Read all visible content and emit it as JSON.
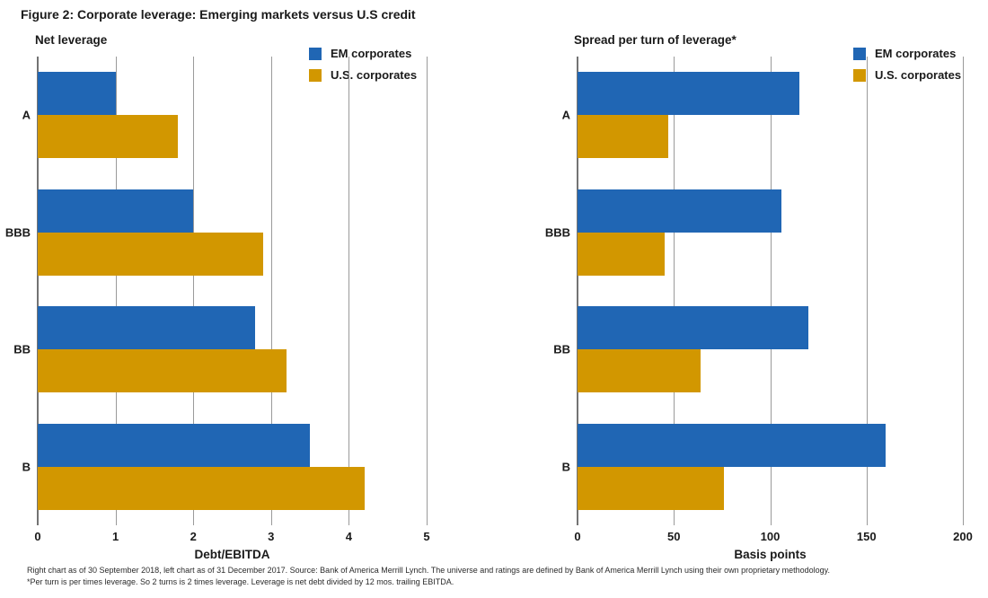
{
  "figure_title": "Figure 2: Corporate leverage: Emerging markets versus U.S credit",
  "colors": {
    "em_blue": "#2066B4",
    "us_gold": "#D29700",
    "gridline": "#9a9a9a",
    "axis": "#737373"
  },
  "footnotes": [
    "Right chart as of 30 September 2018, left chart as of 31 December 2017.  Source: Bank of America Merrill Lynch.  The universe and ratings are defined by Bank of America Merrill Lynch using their own proprietary methodology.",
    "*Per turn is per times leverage. So 2 turns is 2 times leverage. Leverage is net debt divided by 12 mos. trailing EBITDA."
  ],
  "chart_data": [
    {
      "type": "bar",
      "orientation": "horizontal",
      "title": "Net leverage",
      "categories": [
        "A",
        "BBB",
        "BB",
        "B"
      ],
      "series": [
        {
          "name": "EM corporates",
          "color": "#2066B4",
          "values": [
            1.0,
            2.0,
            2.8,
            3.5
          ]
        },
        {
          "name": "U.S. corporates",
          "color": "#D29700",
          "values": [
            1.8,
            2.9,
            3.2,
            4.2
          ]
        }
      ],
      "xlabel": "Debt/EBITDA",
      "xlim": [
        0,
        5
      ],
      "xticks": [
        0,
        1,
        2,
        3,
        4,
        5
      ],
      "grid": true,
      "legend_position": "top-right"
    },
    {
      "type": "bar",
      "orientation": "horizontal",
      "title": "Spread per turn of leverage*",
      "categories": [
        "A",
        "BBB",
        "BB",
        "B"
      ],
      "series": [
        {
          "name": "EM corporates",
          "color": "#2066B4",
          "values": [
            115,
            106,
            120,
            160
          ]
        },
        {
          "name": "U.S. corporates",
          "color": "#D29700",
          "values": [
            47,
            45,
            64,
            76
          ]
        }
      ],
      "xlabel": "Basis points",
      "xlim": [
        0,
        200
      ],
      "xticks": [
        0,
        50,
        100,
        150,
        200
      ],
      "grid": true,
      "legend_position": "top-right"
    }
  ]
}
